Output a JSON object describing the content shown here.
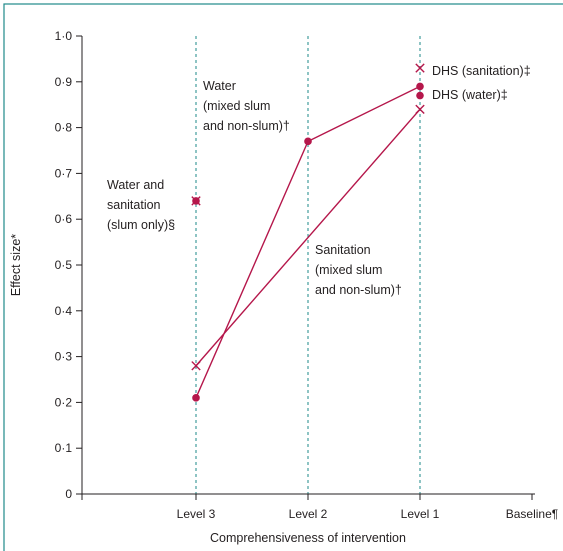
{
  "chart_data": {
    "type": "line",
    "xlabel": "Comprehensiveness of intervention",
    "ylabel": "Effect size*",
    "categories": [
      "Level 3",
      "Level 2",
      "Level 1",
      "Baseline¶"
    ],
    "ylim": [
      0,
      1.0
    ],
    "yticks": [
      "0",
      "0·1",
      "0·2",
      "0·3",
      "0·4",
      "0·5",
      "0·6",
      "0·7",
      "0·8",
      "0·9",
      "1·0"
    ],
    "yvalues": [
      0,
      0.1,
      0.2,
      0.3,
      0.4,
      0.5,
      0.6,
      0.7,
      0.8,
      0.9,
      1.0
    ],
    "grid": false,
    "reference_lines_at": [
      "Level 3",
      "Level 2",
      "Level 1"
    ],
    "color": "#b5174b",
    "series": [
      {
        "marker": "circle",
        "values": [
          0.21,
          0.77,
          0.89,
          null
        ],
        "annotation": [
          "Water",
          "(mixed slum",
          "and non-slum)†"
        ]
      },
      {
        "marker": "cross",
        "values": [
          0.28,
          null,
          0.84,
          null
        ],
        "annotation": [
          "Sanitation",
          "(mixed slum",
          "and non-slum)†"
        ]
      }
    ],
    "single_points": [
      {
        "category": "Level 3",
        "value": 0.64,
        "marker": "circle-cross",
        "annotation": [
          "Water and",
          "sanitation",
          "(slum only)§"
        ]
      },
      {
        "category": "Level 1",
        "value": 0.93,
        "marker": "cross",
        "annotation": [
          "DHS (sanitation)‡"
        ]
      },
      {
        "category": "Level 1",
        "value": 0.87,
        "marker": "circle",
        "annotation": [
          "DHS (water)‡"
        ]
      }
    ]
  }
}
